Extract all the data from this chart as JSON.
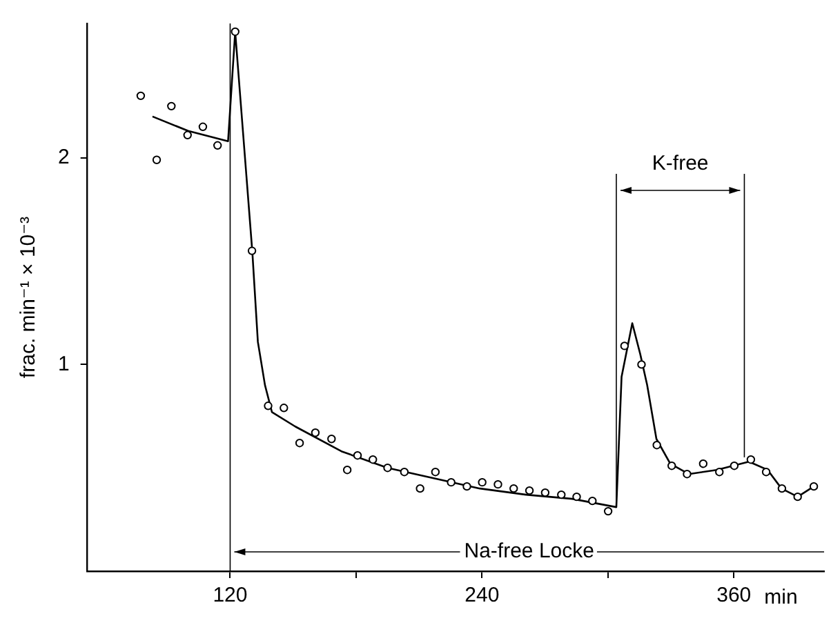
{
  "chart_data": {
    "type": "scatter",
    "ylabel": "frac. min⁻¹ × 10⁻³",
    "xlabel": "min",
    "xlim": [
      52,
      403
    ],
    "ylim": [
      0,
      2.65
    ],
    "xticks": [
      120,
      {
        "value": 180,
        "label": null
      },
      240,
      {
        "value": 300,
        "label": null
      },
      360
    ],
    "yticks": [
      1,
      2
    ],
    "grid": false,
    "legend": false,
    "marker": "circle",
    "series": [
      {
        "color": "#000000",
        "x": [
          77.4,
          85,
          92,
          99.7,
          107,
          114,
          122.4,
          130.4,
          138.1,
          145.6,
          153.1,
          160.6,
          168.3,
          175.8,
          180.7,
          188,
          195,
          203,
          210.5,
          217.8,
          225.3,
          232.8,
          240.1,
          247.6,
          255.1,
          262.6,
          270.1,
          277.8,
          285.1,
          292.6,
          300.1,
          307.9,
          316,
          323.3,
          330.4,
          337.7,
          345.4,
          353.1,
          360.2,
          368.1,
          375.4,
          382.9,
          390.4,
          398.1
        ],
        "values": [
          2.3,
          1.99,
          2.25,
          2.11,
          2.15,
          2.06,
          2.61,
          1.55,
          0.8,
          0.79,
          0.62,
          0.67,
          0.64,
          0.49,
          0.56,
          0.54,
          0.5,
          0.48,
          0.4,
          0.48,
          0.43,
          0.41,
          0.43,
          0.42,
          0.4,
          0.39,
          0.38,
          0.37,
          0.36,
          0.34,
          0.29,
          1.09,
          1,
          0.61,
          0.51,
          0.47,
          0.52,
          0.48,
          0.51,
          0.54,
          0.48,
          0.4,
          0.36,
          0.41
        ]
      },
      {
        "type": "line",
        "color": "#000000",
        "marker": "none",
        "line_style": "solid",
        "x": [
          83,
          100,
          119,
          122.4,
          130.6,
          133.2,
          136.6,
          139.9,
          151,
          173,
          195,
          217,
          239,
          261,
          283,
          304,
          306.5,
          311.6,
          315.4,
          318.7,
          323.1,
          329.7,
          338.5,
          351.8,
          367.2,
          376.1,
          382.7,
          390.4,
          398.1
        ],
        "values": [
          2.2,
          2.13,
          2.08,
          2.61,
          1.54,
          1.11,
          0.9,
          0.77,
          0.7,
          0.58,
          0.5,
          0.45,
          0.4,
          0.37,
          0.35,
          0.31,
          0.94,
          1.2,
          1.05,
          0.9,
          0.64,
          0.52,
          0.47,
          0.49,
          0.53,
          0.49,
          0.4,
          0.36,
          0.41
        ]
      }
    ],
    "ref_lines": [
      {
        "axis": "x",
        "value": 120,
        "label": "Na-free Locke",
        "color": "#000000"
      },
      {
        "axis": "x",
        "value": 304,
        "label": "K-free",
        "color": "#000000"
      },
      {
        "axis": "x",
        "value": 365,
        "color": "#000000"
      }
    ]
  }
}
